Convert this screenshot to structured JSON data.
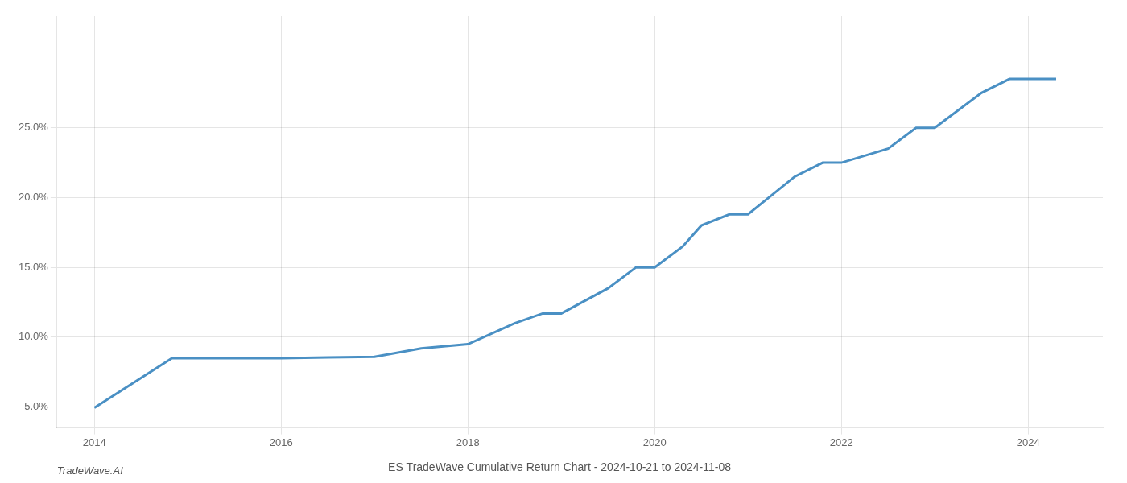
{
  "chart_data": {
    "type": "line",
    "title": "ES TradeWave Cumulative Return Chart - 2024-10-21 to 2024-11-08",
    "annotations": [
      "TradeWave.AI"
    ],
    "x": [
      2014.0,
      2014.83,
      2015.0,
      2015.5,
      2016.0,
      2016.5,
      2017.0,
      2017.5,
      2018.0,
      2018.5,
      2018.8,
      2019.0,
      2019.5,
      2019.8,
      2020.0,
      2020.3,
      2020.5,
      2020.8,
      2021.0,
      2021.5,
      2021.8,
      2022.0,
      2022.5,
      2022.8,
      2023.0,
      2023.5,
      2023.8,
      2024.0,
      2024.3
    ],
    "values": [
      4.95,
      8.5,
      8.5,
      8.5,
      8.5,
      8.55,
      8.6,
      9.2,
      9.5,
      11.0,
      11.7,
      11.7,
      13.5,
      15.0,
      15.0,
      16.5,
      18.0,
      18.8,
      18.8,
      21.5,
      22.5,
      22.5,
      23.5,
      25.0,
      25.0,
      27.5,
      28.5,
      28.5,
      28.5
    ],
    "color": "#4a90c4",
    "xlim": [
      2013.6,
      2024.8
    ],
    "xticks": [
      2014,
      2016,
      2018,
      2020,
      2022,
      2024
    ],
    "ylim": [
      3.5,
      33.0
    ],
    "yticks": [
      {
        "value": 5.0,
        "label": "5.0%"
      },
      {
        "value": 10.0,
        "label": "10.0%"
      },
      {
        "value": 15.0,
        "label": "15.0%"
      },
      {
        "value": 20.0,
        "label": "20.0%"
      },
      {
        "value": 25.0,
        "label": "25.0%"
      }
    ],
    "grid": true
  }
}
